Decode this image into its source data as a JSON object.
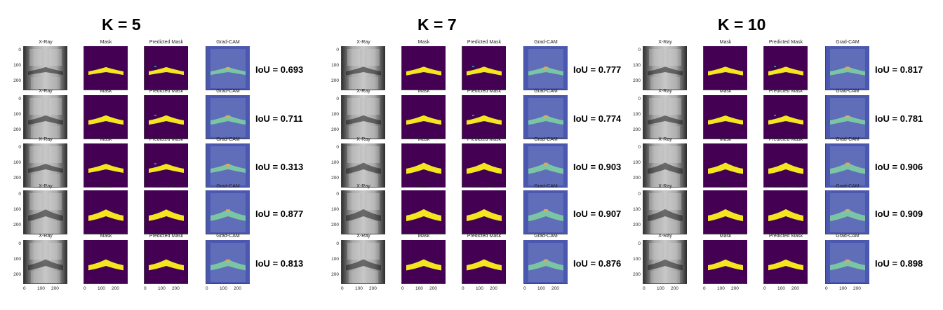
{
  "blocks": [
    {
      "title": "K = 5",
      "ious": [
        "IoU = 0.693",
        "IoU = 0.711",
        "IoU = 0.313",
        "IoU = 0.877",
        "IoU = 0.813"
      ],
      "shapes": [
        0.35,
        0.55,
        0.5,
        0.8,
        0.72
      ]
    },
    {
      "title": "K = 7",
      "ious": [
        "IoU = 0.777",
        "IoU = 0.774",
        "IoU = 0.903",
        "IoU = 0.907",
        "IoU = 0.876"
      ],
      "shapes": [
        0.45,
        0.55,
        0.75,
        0.85,
        0.75
      ]
    },
    {
      "title": "K = 10",
      "ious": [
        "IoU = 0.817",
        "IoU = 0.781",
        "IoU = 0.906",
        "IoU = 0.909",
        "IoU = 0.898"
      ],
      "shapes": [
        0.45,
        0.5,
        0.78,
        0.85,
        0.7
      ]
    }
  ],
  "panel_titles": [
    "X-Ray",
    "Mask",
    "Predicted Mask",
    "Grad-CAM"
  ],
  "y_ticks": [
    "0",
    "100",
    "200"
  ],
  "x_ticks": [
    "0",
    "100",
    "200"
  ],
  "colors": {
    "mask_bg": "#440154",
    "mask_fg": "#f3e51e",
    "gradcam_bg": "#4a58b0",
    "xray_dark": "#1a1a1a",
    "xray_light": "#bcbcbc"
  }
}
